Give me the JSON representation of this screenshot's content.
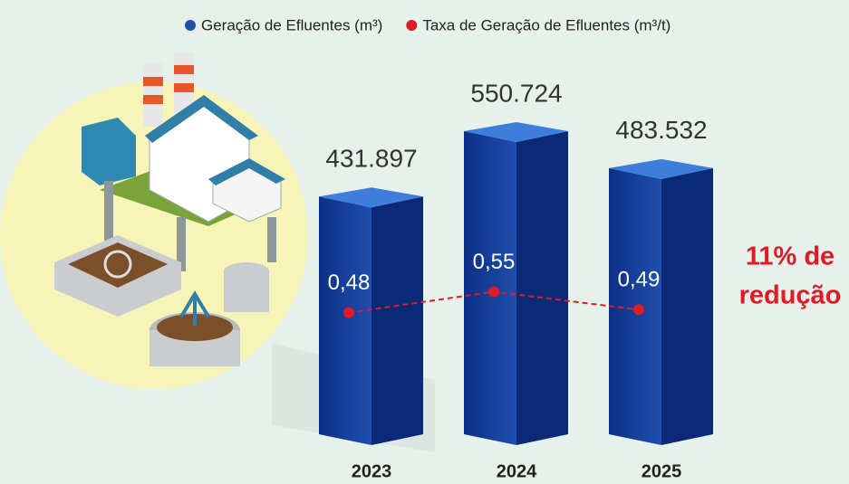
{
  "chart_data": {
    "type": "bar",
    "categories": [
      "2023",
      "2024",
      "2025"
    ],
    "series": [
      {
        "name": "Geração de Efluentes (m³)",
        "color": "#1f4fae",
        "values": [
          431897,
          550724,
          483532
        ],
        "value_labels": [
          "431.897",
          "550.724",
          "483.532"
        ]
      },
      {
        "name": "Taxa de Geração de Efluentes (m³/t)",
        "color": "#e01b24",
        "axis": "y2",
        "type": "line",
        "values": [
          0.48,
          0.55,
          0.49
        ],
        "value_labels": [
          "0,48",
          "0,55",
          "0,49"
        ]
      }
    ],
    "ylim": [
      0,
      600000
    ],
    "y2lim": [
      0.3,
      0.7
    ],
    "annotation": [
      "11% de",
      "redução"
    ],
    "annotation_color": "#e01b24"
  }
}
